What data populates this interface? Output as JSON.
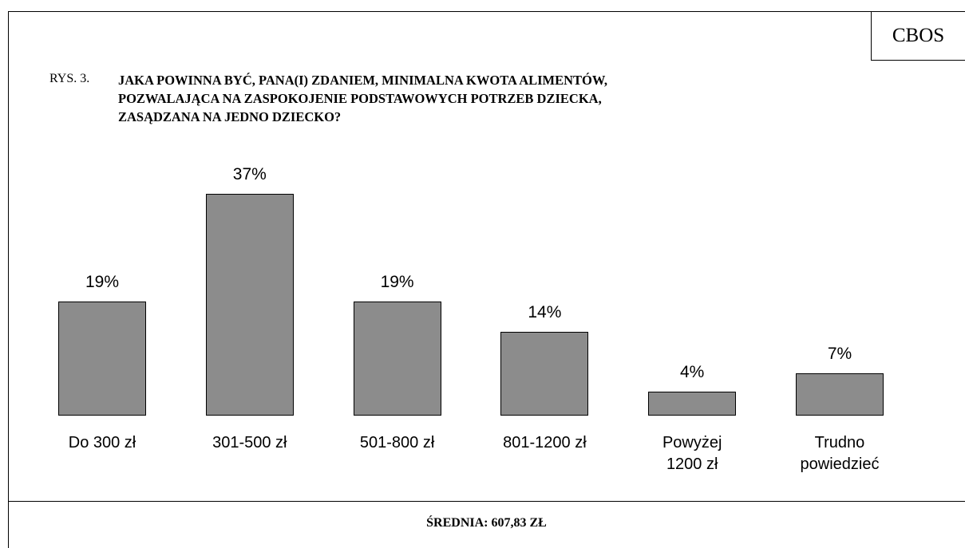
{
  "chart_data": {
    "type": "bar",
    "source": "CBOS",
    "figure_label": "RYS. 3.",
    "title": "JAKA POWINNA BYĆ, PANA(I) ZDANIEM, MINIMALNA KWOTA ALIMENTÓW,\nPOZWALAJĄCA NA ZASPOKOJENIE PODSTAWOWYCH POTRZEB DZIECKA,\nZASĄDZANA NA JEDNO DZIECKO?",
    "categories": [
      "Do 300 zł",
      "301-500 zł",
      "501-800 zł",
      "801-1200 zł",
      "Powyżej\n1200 zł",
      "Trudno\npowiedzieć"
    ],
    "values": [
      19,
      37,
      19,
      14,
      4,
      7
    ],
    "value_labels": [
      "19%",
      "37%",
      "19%",
      "14%",
      "4%",
      "7%"
    ],
    "color": "#8c8c8c",
    "footer": "ŚREDNIA: 607,83 ZŁ"
  }
}
